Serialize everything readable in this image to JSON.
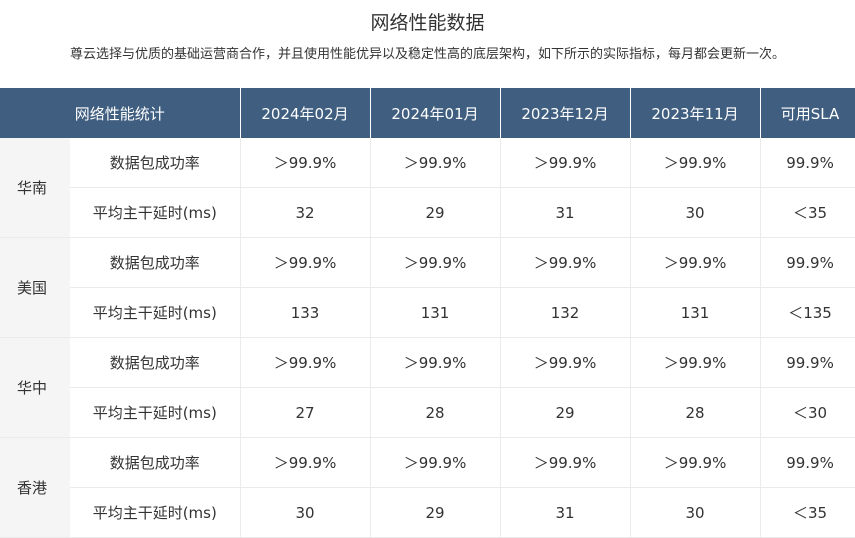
{
  "page": {
    "title": "网络性能数据",
    "description": "尊云选择与优质的基础运营商合作，并且使用性能优异以及稳定性高的底层架构，如下所示的实际指标，每月都会更新一次。"
  },
  "table": {
    "headers": [
      "网络性能统计",
      "2024年02月",
      "2024年01月",
      "2023年12月",
      "2023年11月",
      "可用SLA"
    ],
    "regions": [
      {
        "name": "华南",
        "rows": [
          {
            "metric": "数据包成功率",
            "values": [
              "＞99.9%",
              "＞99.9%",
              "＞99.9%",
              "＞99.9%"
            ],
            "sla": "99.9%"
          },
          {
            "metric": "平均主干延时(ms)",
            "values": [
              "32",
              "29",
              "31",
              "30"
            ],
            "sla": "＜35"
          }
        ]
      },
      {
        "name": "美国",
        "rows": [
          {
            "metric": "数据包成功率",
            "values": [
              "＞99.9%",
              "＞99.9%",
              "＞99.9%",
              "＞99.9%"
            ],
            "sla": "99.9%"
          },
          {
            "metric": "平均主干延时(ms)",
            "values": [
              "133",
              "131",
              "132",
              "131"
            ],
            "sla": "＜135"
          }
        ]
      },
      {
        "name": "华中",
        "rows": [
          {
            "metric": "数据包成功率",
            "values": [
              "＞99.9%",
              "＞99.9%",
              "＞99.9%",
              "＞99.9%"
            ],
            "sla": "99.9%"
          },
          {
            "metric": "平均主干延时(ms)",
            "values": [
              "27",
              "28",
              "29",
              "28"
            ],
            "sla": "＜30"
          }
        ]
      },
      {
        "name": "香港",
        "rows": [
          {
            "metric": "数据包成功率",
            "values": [
              "＞99.9%",
              "＞99.9%",
              "＞99.9%",
              "＞99.9%"
            ],
            "sla": "99.9%"
          },
          {
            "metric": "平均主干延时(ms)",
            "values": [
              "30",
              "29",
              "31",
              "30"
            ],
            "sla": "＜35"
          }
        ]
      }
    ]
  }
}
